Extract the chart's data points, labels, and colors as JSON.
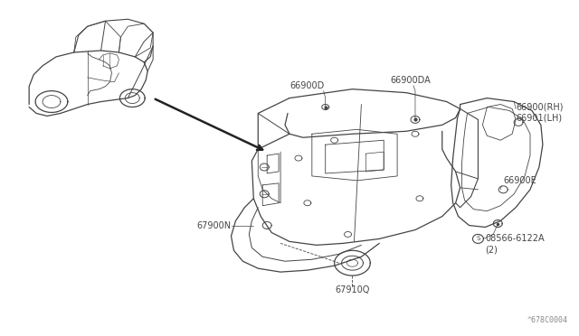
{
  "background_color": "#ffffff",
  "line_color": "#444444",
  "text_color": "#444444",
  "fig_width": 6.4,
  "fig_height": 3.72,
  "dpi": 100,
  "ref_code": "^678C0004",
  "label_texts": {
    "66900D": "66900D",
    "66900DA": "66900DA",
    "66900_RH": "66900(RH)",
    "66901_LH": "66901(LH)",
    "66900E": "66900E",
    "08566": "S08566-6122A",
    "qty": "(2)",
    "67900N": "67900N",
    "67910Q": "67910Q"
  }
}
